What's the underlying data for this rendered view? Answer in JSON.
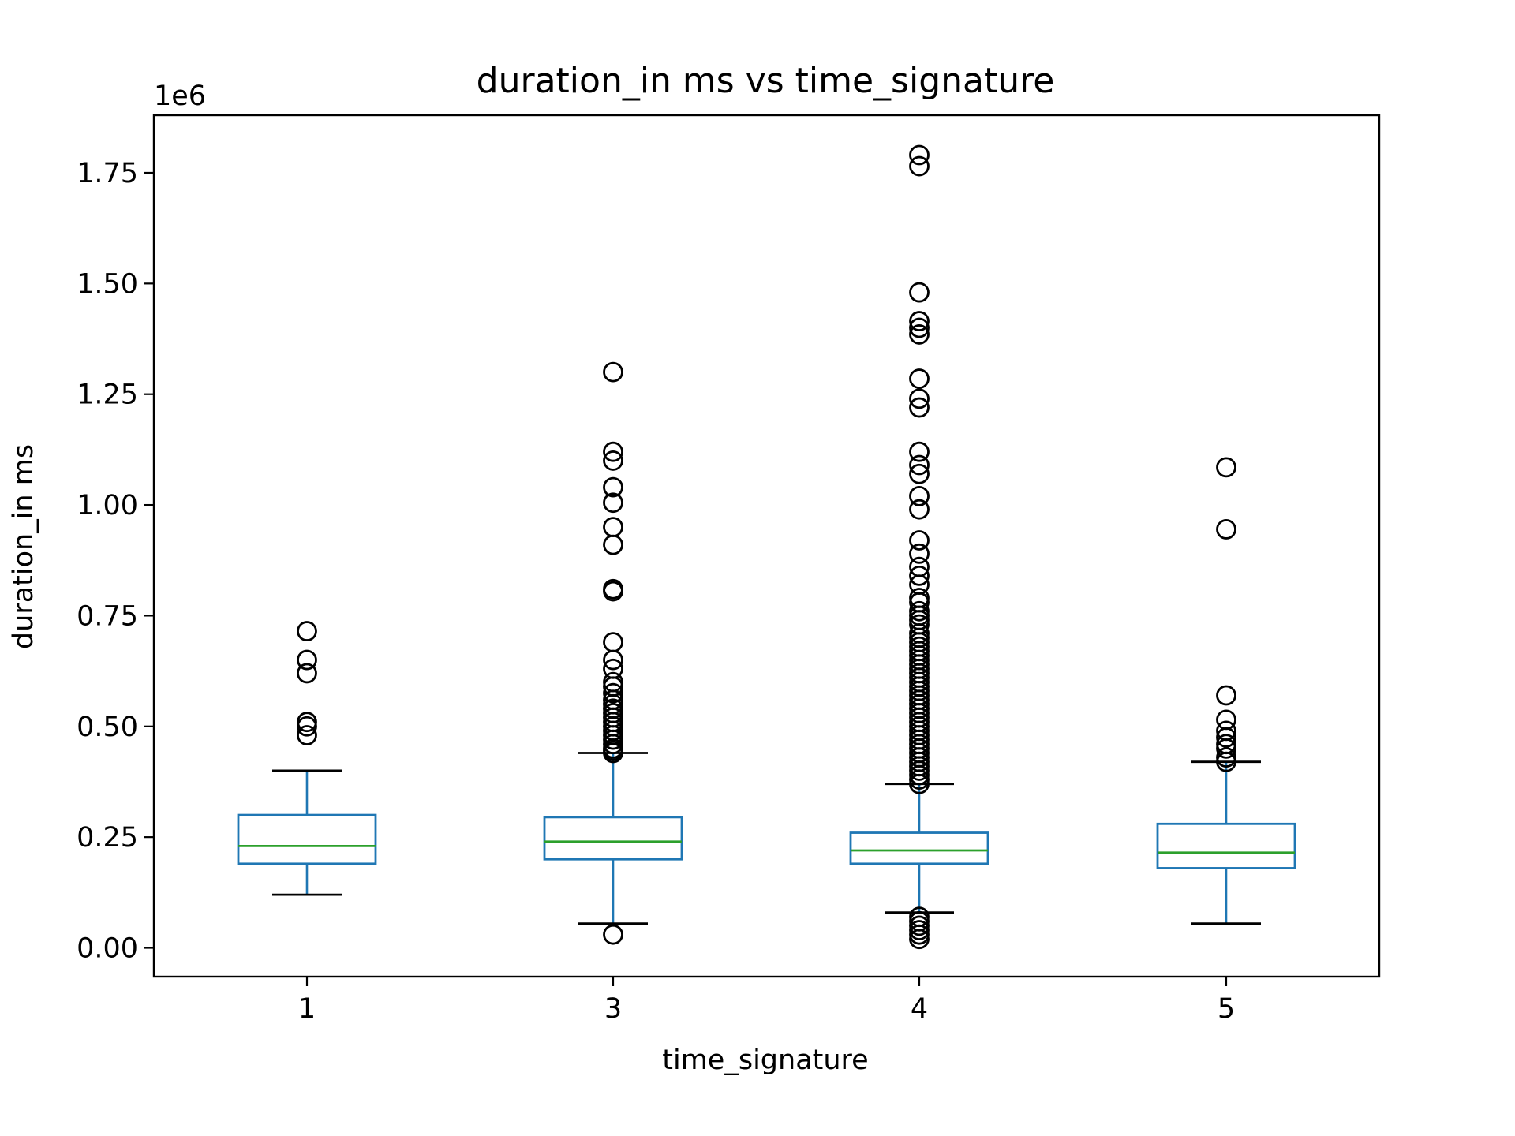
{
  "chart_data": {
    "type": "box",
    "title": "duration_in ms vs time_signature",
    "xlabel": "time_signature",
    "ylabel": "duration_in ms",
    "y_offset_label": "1e6",
    "y_scale_factor": 1000000,
    "ylim": [
      -0.065,
      1.88
    ],
    "yticks": [
      0.0,
      0.25,
      0.5,
      0.75,
      1.0,
      1.25,
      1.5,
      1.75
    ],
    "ytick_labels": [
      "0.00",
      "0.25",
      "0.50",
      "0.75",
      "1.00",
      "1.25",
      "1.50",
      "1.75"
    ],
    "grid": false,
    "legend": "none",
    "colors": {
      "box": "#1f77b4",
      "median": "#2ca02c",
      "whisker_cap": "#000000",
      "flier": "#000000"
    },
    "categories": [
      "1",
      "3",
      "4",
      "5"
    ],
    "boxes": [
      {
        "label": "1",
        "whisker_low": 0.12,
        "q1": 0.19,
        "median": 0.23,
        "q3": 0.3,
        "whisker_high": 0.4,
        "fliers": [
          0.48,
          0.5,
          0.51,
          0.62,
          0.65,
          0.715
        ]
      },
      {
        "label": "3",
        "whisker_low": 0.055,
        "q1": 0.2,
        "median": 0.24,
        "q3": 0.295,
        "whisker_high": 0.44,
        "fliers": [
          0.03,
          0.44,
          0.445,
          0.45,
          0.46,
          0.47,
          0.48,
          0.49,
          0.5,
          0.51,
          0.52,
          0.53,
          0.54,
          0.55,
          0.56,
          0.575,
          0.59,
          0.6,
          0.63,
          0.65,
          0.69,
          0.805,
          0.81,
          0.91,
          0.95,
          1.005,
          1.04,
          1.1,
          1.12,
          1.3
        ]
      },
      {
        "label": "4",
        "whisker_low": 0.08,
        "q1": 0.19,
        "median": 0.22,
        "q3": 0.26,
        "whisker_high": 0.37,
        "fliers": [
          0.02,
          0.03,
          0.04,
          0.05,
          0.06,
          0.07,
          0.37,
          0.38,
          0.39,
          0.4,
          0.41,
          0.42,
          0.43,
          0.44,
          0.45,
          0.46,
          0.47,
          0.48,
          0.49,
          0.5,
          0.51,
          0.52,
          0.53,
          0.54,
          0.55,
          0.56,
          0.57,
          0.58,
          0.59,
          0.6,
          0.61,
          0.62,
          0.63,
          0.64,
          0.65,
          0.66,
          0.67,
          0.68,
          0.69,
          0.7,
          0.71,
          0.73,
          0.74,
          0.75,
          0.76,
          0.78,
          0.79,
          0.82,
          0.84,
          0.86,
          0.89,
          0.92,
          0.99,
          1.02,
          1.07,
          1.09,
          1.12,
          1.22,
          1.24,
          1.285,
          1.385,
          1.4,
          1.415,
          1.48,
          1.765,
          1.79
        ]
      },
      {
        "label": "5",
        "whisker_low": 0.055,
        "q1": 0.18,
        "median": 0.215,
        "q3": 0.28,
        "whisker_high": 0.42,
        "fliers": [
          0.42,
          0.43,
          0.45,
          0.46,
          0.475,
          0.49,
          0.515,
          0.57,
          0.945,
          1.085
        ]
      }
    ]
  }
}
